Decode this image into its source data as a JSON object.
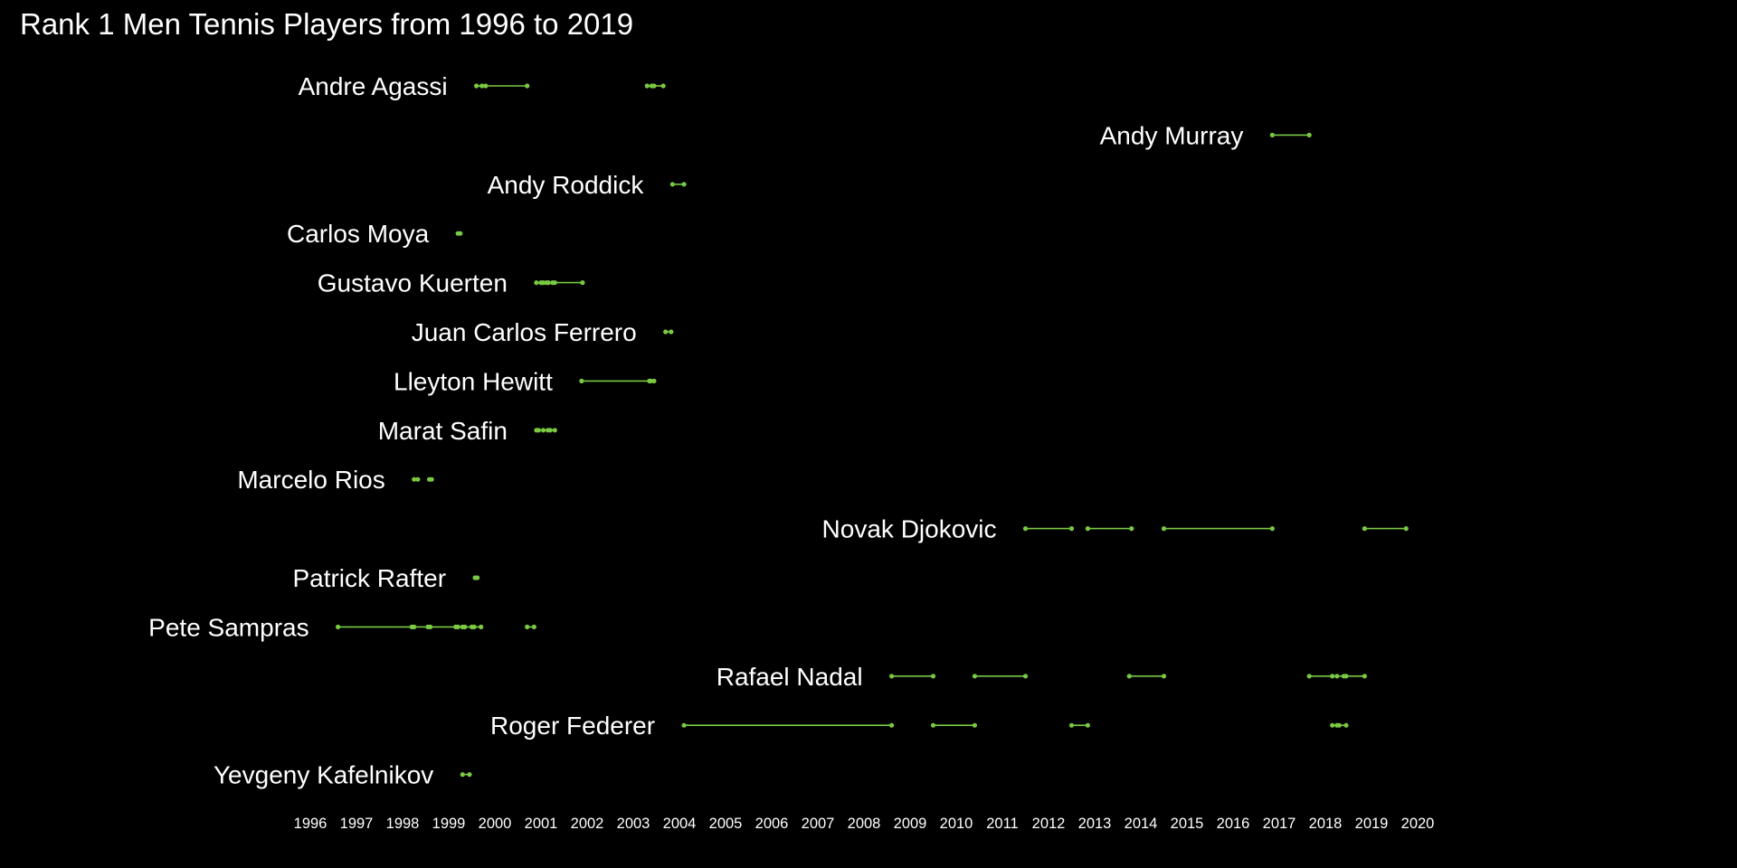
{
  "chart_data": {
    "type": "timeline",
    "title": "Rank 1 Men Tennis Players from 1996 to 2019",
    "xlabel": "",
    "ylabel": "",
    "xlim": [
      1996,
      2020
    ],
    "x_ticks": [
      "1996",
      "1997",
      "1998",
      "1999",
      "2000",
      "2001",
      "2002",
      "2003",
      "2004",
      "2005",
      "2006",
      "2007",
      "2008",
      "2009",
      "2010",
      "2011",
      "2012",
      "2013",
      "2014",
      "2015",
      "2016",
      "2017",
      "2018",
      "2019",
      "2020"
    ],
    "grid": false,
    "legend": "none",
    "colors": {
      "background": "#000000",
      "text": "#ffffff",
      "line": "#7ac943"
    },
    "players": [
      {
        "name": "Andre Agassi",
        "spells": [
          {
            "start": 1999.6,
            "end": 1999.72
          },
          {
            "start": 1999.8,
            "end": 2000.7
          },
          {
            "start": 2003.3,
            "end": 2003.4
          },
          {
            "start": 2003.45,
            "end": 2003.65
          }
        ]
      },
      {
        "name": "Andy Murray",
        "spells": [
          {
            "start": 2016.85,
            "end": 2017.65
          }
        ]
      },
      {
        "name": "Andy Roddick",
        "spells": [
          {
            "start": 2003.85,
            "end": 2004.1
          }
        ]
      },
      {
        "name": "Carlos Moya",
        "spells": [
          {
            "start": 1999.2,
            "end": 1999.25
          }
        ]
      },
      {
        "name": "Gustavo Kuerten",
        "spells": [
          {
            "start": 2000.9,
            "end": 2001.0
          },
          {
            "start": 2001.05,
            "end": 2001.12
          },
          {
            "start": 2001.16,
            "end": 2001.25
          },
          {
            "start": 2001.3,
            "end": 2001.9
          }
        ]
      },
      {
        "name": "Juan Carlos Ferrero",
        "spells": [
          {
            "start": 2003.7,
            "end": 2003.82
          }
        ]
      },
      {
        "name": "Lleyton Hewitt",
        "spells": [
          {
            "start": 2001.88,
            "end": 2003.35
          },
          {
            "start": 2003.38,
            "end": 2003.45
          }
        ]
      },
      {
        "name": "Marat Safin",
        "spells": [
          {
            "start": 2000.9,
            "end": 2000.95
          },
          {
            "start": 2001.05,
            "end": 2001.15
          },
          {
            "start": 2001.2,
            "end": 2001.3
          }
        ]
      },
      {
        "name": "Marcelo Rios",
        "spells": [
          {
            "start": 1998.25,
            "end": 1998.33
          },
          {
            "start": 1998.58,
            "end": 1998.63
          }
        ]
      },
      {
        "name": "Novak Djokovic",
        "spells": [
          {
            "start": 2011.5,
            "end": 2012.5
          },
          {
            "start": 2012.85,
            "end": 2013.8
          },
          {
            "start": 2014.5,
            "end": 2016.85
          },
          {
            "start": 2018.85,
            "end": 2019.75
          }
        ]
      },
      {
        "name": "Patrick Rafter",
        "spells": [
          {
            "start": 1999.57,
            "end": 1999.62
          }
        ]
      },
      {
        "name": "Pete Sampras",
        "spells": [
          {
            "start": 1996.6,
            "end": 1998.2
          },
          {
            "start": 1998.25,
            "end": 1998.55
          },
          {
            "start": 1998.6,
            "end": 1999.15
          },
          {
            "start": 1999.2,
            "end": 1999.3
          },
          {
            "start": 1999.35,
            "end": 1999.5
          },
          {
            "start": 1999.55,
            "end": 1999.7
          },
          {
            "start": 2000.7,
            "end": 2000.85
          }
        ]
      },
      {
        "name": "Rafael Nadal",
        "spells": [
          {
            "start": 2008.6,
            "end": 2009.5
          },
          {
            "start": 2010.4,
            "end": 2011.5
          },
          {
            "start": 2013.75,
            "end": 2014.5
          },
          {
            "start": 2017.65,
            "end": 2018.15
          },
          {
            "start": 2018.25,
            "end": 2018.4
          },
          {
            "start": 2018.45,
            "end": 2018.85
          }
        ]
      },
      {
        "name": "Roger Federer",
        "spells": [
          {
            "start": 2004.1,
            "end": 2008.6
          },
          {
            "start": 2009.5,
            "end": 2010.4
          },
          {
            "start": 2012.5,
            "end": 2012.85
          },
          {
            "start": 2018.15,
            "end": 2018.25
          },
          {
            "start": 2018.3,
            "end": 2018.45
          }
        ]
      },
      {
        "name": "Yevgeny Kafelnikov",
        "spells": [
          {
            "start": 1999.3,
            "end": 1999.45
          }
        ]
      }
    ]
  }
}
